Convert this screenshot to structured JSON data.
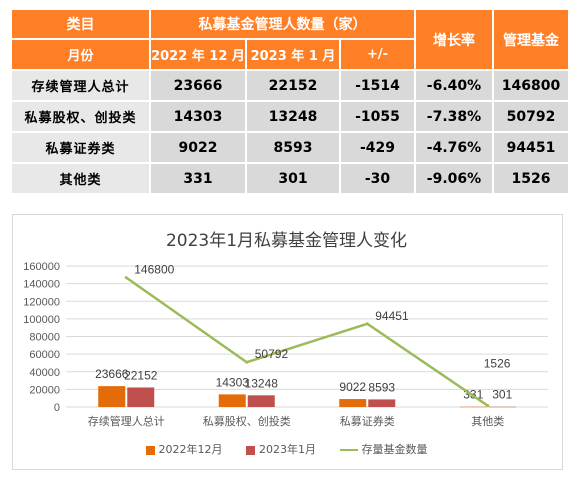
{
  "table": {
    "header_row1": {
      "category": "类目",
      "group": "私募基金管理人数量（家）",
      "growth": "增长率",
      "managed_fund": "管理基金"
    },
    "header_row2": {
      "month": "月份",
      "dec_2022": "2022 年 12 月",
      "jan_2023": "2023 年 1 月",
      "diff": "+/-"
    },
    "rows": [
      {
        "category": "存续管理人总计",
        "dec_2022": "23666",
        "jan_2023": "22152",
        "diff": "-1514",
        "growth": "-6.40%",
        "managed_fund": "146800"
      },
      {
        "category": "私募股权、创投类",
        "dec_2022": "14303",
        "jan_2023": "13248",
        "diff": "-1055",
        "growth": "-7.38%",
        "managed_fund": "50792"
      },
      {
        "category": "私募证券类",
        "dec_2022": "9022",
        "jan_2023": "8593",
        "diff": "-429",
        "growth": "-4.76%",
        "managed_fund": "94451"
      },
      {
        "category": "其他类",
        "dec_2022": "331",
        "jan_2023": "301",
        "diff": "-30",
        "growth": "-9.06%",
        "managed_fund": "1526"
      }
    ]
  },
  "chart_data": {
    "type": "bar",
    "title": "2023年1月私募基金管理人变化",
    "categories": [
      "存续管理人总计",
      "私募股权、创投类",
      "私募证券类",
      "其他类"
    ],
    "series": [
      {
        "name": "2022年12月",
        "type": "bar",
        "values": [
          23666,
          14303,
          9022,
          331
        ],
        "color": "#e36c09"
      },
      {
        "name": "2023年1月",
        "type": "bar",
        "values": [
          22152,
          13248,
          8593,
          301
        ],
        "color": "#c0504d"
      },
      {
        "name": "存量基金数量",
        "type": "line",
        "values": [
          146800,
          50792,
          94451,
          1526
        ],
        "color": "#9bbb59"
      }
    ],
    "ylim": [
      0,
      160000
    ],
    "yticks": [
      "0",
      "20000",
      "40000",
      "60000",
      "80000",
      "100000",
      "120000",
      "140000",
      "160000"
    ],
    "grid": true,
    "legend": "bottom"
  },
  "colors": {
    "header_bg": "#ff7f27",
    "cell_bg": "#d9d9d9"
  }
}
